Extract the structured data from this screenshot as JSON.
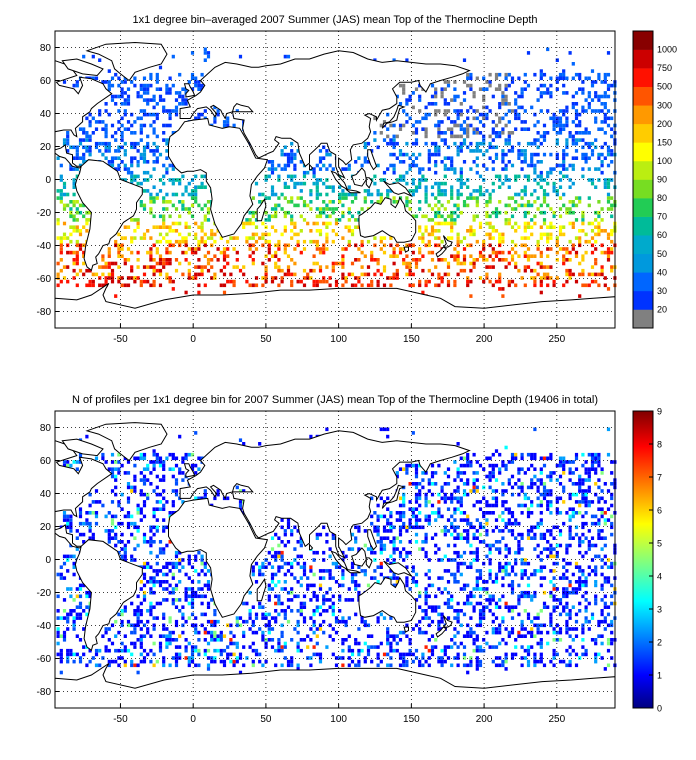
{
  "maps": [
    {
      "title": "1x1 degree bin–averaged 2007 Summer (JAS) mean Top of the Thermocline Depth",
      "lon_ticks": [
        "-50",
        "0",
        "50",
        "100",
        "150",
        "200",
        "250"
      ],
      "lat_ticks": [
        "80",
        "60",
        "40",
        "20",
        "0",
        "-20",
        "-40",
        "-60",
        "-80"
      ],
      "xlim": [
        -95,
        290
      ],
      "ylim": [
        -90,
        90
      ],
      "colorbar": {
        "labels": [
          "20",
          "30",
          "40",
          "50",
          "60",
          "70",
          "80",
          "90",
          "100",
          "150",
          "200",
          "300",
          "500",
          "750",
          "1000"
        ],
        "colors": [
          "#808080",
          "#0033ff",
          "#0066ff",
          "#0099dd",
          "#00aacc",
          "#00bb99",
          "#22cc55",
          "#77dd22",
          "#bbee11",
          "#ffff00",
          "#ffcc00",
          "#ff9900",
          "#ff5500",
          "#ff1100",
          "#cc0000",
          "#880000"
        ]
      }
    },
    {
      "title": "N of profiles per 1x1 degree bin for 2007 Summer (JAS) mean Top of the Thermocline Depth  (19406 in total)",
      "lon_ticks": [
        "-50",
        "0",
        "50",
        "100",
        "150",
        "200",
        "250"
      ],
      "lat_ticks": [
        "80",
        "60",
        "40",
        "20",
        "0",
        "-20",
        "-40",
        "-60",
        "-80"
      ],
      "xlim": [
        -95,
        290
      ],
      "ylim": [
        -90,
        90
      ],
      "colorbar": {
        "labels": [
          "0",
          "1",
          "2",
          "3",
          "4",
          "5",
          "6",
          "7",
          "8",
          "9"
        ],
        "range": [
          0,
          9
        ]
      }
    }
  ]
}
